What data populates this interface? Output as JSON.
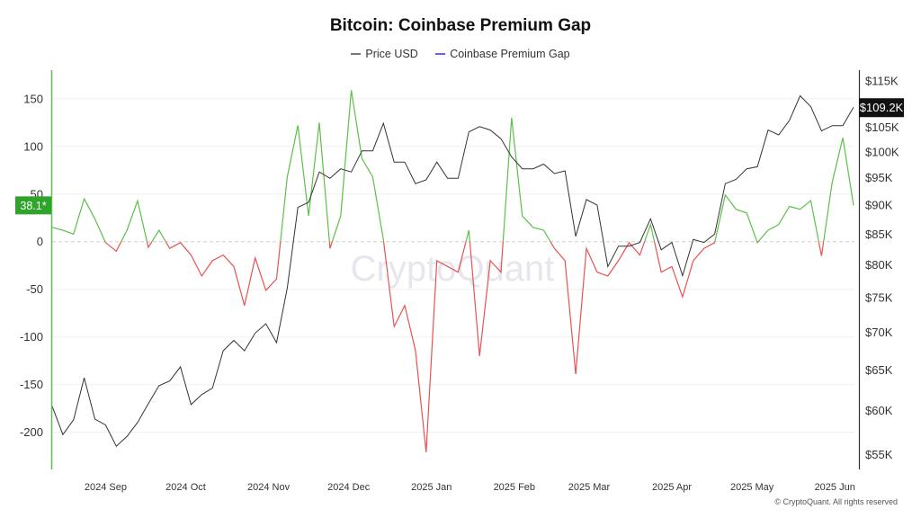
{
  "chart_data": {
    "type": "line",
    "title": "Bitcoin: Coinbase Premium Gap",
    "legend": [
      "Price USD",
      "Coinbase Premium Gap"
    ],
    "legend_position": "top",
    "grid": true,
    "watermark": "CryptoQuant",
    "copyright": "© CryptoQuant. All rights reserved",
    "x_tick_labels": [
      "2024 Sep",
      "2024 Oct",
      "2024 Nov",
      "2024 Dec",
      "2025 Jan",
      "2025 Feb",
      "2025 Mar",
      "2025 Apr",
      "2025 May",
      "2025 Jun"
    ],
    "x_tick_dates": [
      "2024-09-01",
      "2024-10-01",
      "2024-11-01",
      "2024-12-01",
      "2025-01-01",
      "2025-02-01",
      "2025-03-01",
      "2025-04-01",
      "2025-05-01",
      "2025-06-01"
    ],
    "x_range": [
      "2024-08-12",
      "2025-06-08"
    ],
    "left_axis": {
      "ticks": [
        "150",
        "100",
        "50",
        "0",
        "-50",
        "-100",
        "-150",
        "-200"
      ],
      "tick_values": [
        150,
        100,
        50,
        0,
        -50,
        -100,
        -150,
        -200
      ],
      "range": [
        -239,
        180
      ],
      "current_label": "38.1*"
    },
    "right_axis": {
      "scale": "log",
      "ticks": [
        "$115K",
        "$105K",
        "$100K",
        "$95K",
        "$90K",
        "$85K",
        "$80K",
        "$75K",
        "$70K",
        "$65K",
        "$60K",
        "$55K"
      ],
      "tick_values": [
        115,
        105,
        100,
        95,
        90,
        85,
        80,
        75,
        70,
        65,
        60,
        55
      ],
      "range": [
        53.4,
        117.5
      ],
      "current_label": "$109.2K"
    },
    "colors": {
      "price": "#333333",
      "premium_positive": "#5cc04a",
      "premium_negative": "#e85252",
      "legend_premium": "#6b5cff",
      "left_badge": "#2ea52a",
      "right_badge": "#111111"
    },
    "x": [
      "2024-08-12",
      "2024-08-16",
      "2024-08-20",
      "2024-08-24",
      "2024-08-28",
      "2024-09-01",
      "2024-09-05",
      "2024-09-09",
      "2024-09-13",
      "2024-09-17",
      "2024-09-21",
      "2024-09-25",
      "2024-09-29",
      "2024-10-03",
      "2024-10-07",
      "2024-10-11",
      "2024-10-15",
      "2024-10-19",
      "2024-10-23",
      "2024-10-27",
      "2024-10-31",
      "2024-11-04",
      "2024-11-08",
      "2024-11-12",
      "2024-11-16",
      "2024-11-20",
      "2024-11-24",
      "2024-11-28",
      "2024-12-02",
      "2024-12-06",
      "2024-12-10",
      "2024-12-14",
      "2024-12-18",
      "2024-12-22",
      "2024-12-26",
      "2024-12-30",
      "2025-01-03",
      "2025-01-07",
      "2025-01-11",
      "2025-01-15",
      "2025-01-19",
      "2025-01-23",
      "2025-01-27",
      "2025-01-31",
      "2025-02-04",
      "2025-02-08",
      "2025-02-12",
      "2025-02-16",
      "2025-02-20",
      "2025-02-24",
      "2025-02-28",
      "2025-03-04",
      "2025-03-08",
      "2025-03-12",
      "2025-03-16",
      "2025-03-20",
      "2025-03-24",
      "2025-03-28",
      "2025-04-01",
      "2025-04-05",
      "2025-04-09",
      "2025-04-13",
      "2025-04-17",
      "2025-04-21",
      "2025-04-25",
      "2025-04-29",
      "2025-05-03",
      "2025-05-07",
      "2025-05-11",
      "2025-05-15",
      "2025-05-19",
      "2025-05-23",
      "2025-05-27",
      "2025-05-31",
      "2025-06-04",
      "2025-06-08"
    ],
    "series": [
      {
        "name": "Price USD",
        "axis": "right",
        "unit": "K USD",
        "values": [
          60.5,
          57.2,
          58.9,
          64.0,
          59.0,
          58.3,
          55.9,
          57.0,
          58.6,
          60.8,
          63.0,
          63.6,
          65.4,
          60.7,
          61.9,
          62.7,
          67.5,
          68.9,
          67.5,
          69.9,
          71.2,
          68.6,
          76.4,
          89.6,
          90.5,
          96.1,
          94.9,
          96.7,
          96.1,
          100.2,
          100.2,
          105.8,
          98.0,
          98.0,
          93.9,
          94.6,
          98.0,
          94.9,
          94.9,
          104.0,
          105.1,
          104.4,
          102.6,
          99.0,
          96.7,
          96.7,
          97.6,
          95.8,
          96.3,
          84.6,
          91.0,
          90.0,
          79.7,
          83.0,
          83.0,
          83.6,
          87.6,
          82.4,
          83.6,
          78.3,
          84.1,
          83.6,
          85.0,
          93.9,
          94.7,
          96.7,
          97.1,
          104.4,
          103.4,
          106.4,
          111.7,
          109.3,
          104.2,
          105.3,
          105.3,
          109.2
        ]
      },
      {
        "name": "Coinbase Premium Gap",
        "axis": "left",
        "values": [
          15,
          12,
          8,
          45,
          24,
          -1,
          -10,
          12,
          43,
          -6,
          12,
          -7,
          -1,
          -14,
          -36,
          -20,
          -14,
          -26,
          -67,
          -17,
          -51,
          -39,
          68,
          122,
          27,
          125,
          -7,
          27,
          159,
          87,
          68,
          2,
          -89,
          -67,
          -114,
          -221,
          -20,
          -26,
          -32,
          12,
          -120,
          -20,
          -32,
          130,
          27,
          15,
          12,
          -7,
          -20,
          -139,
          -7,
          -32,
          -36,
          -20,
          -1,
          -14,
          18,
          -32,
          -26,
          -58,
          -20,
          -7,
          -1,
          49,
          34,
          30,
          -1,
          12,
          18,
          37,
          34,
          43,
          -15,
          62,
          109,
          38.1
        ]
      }
    ]
  }
}
